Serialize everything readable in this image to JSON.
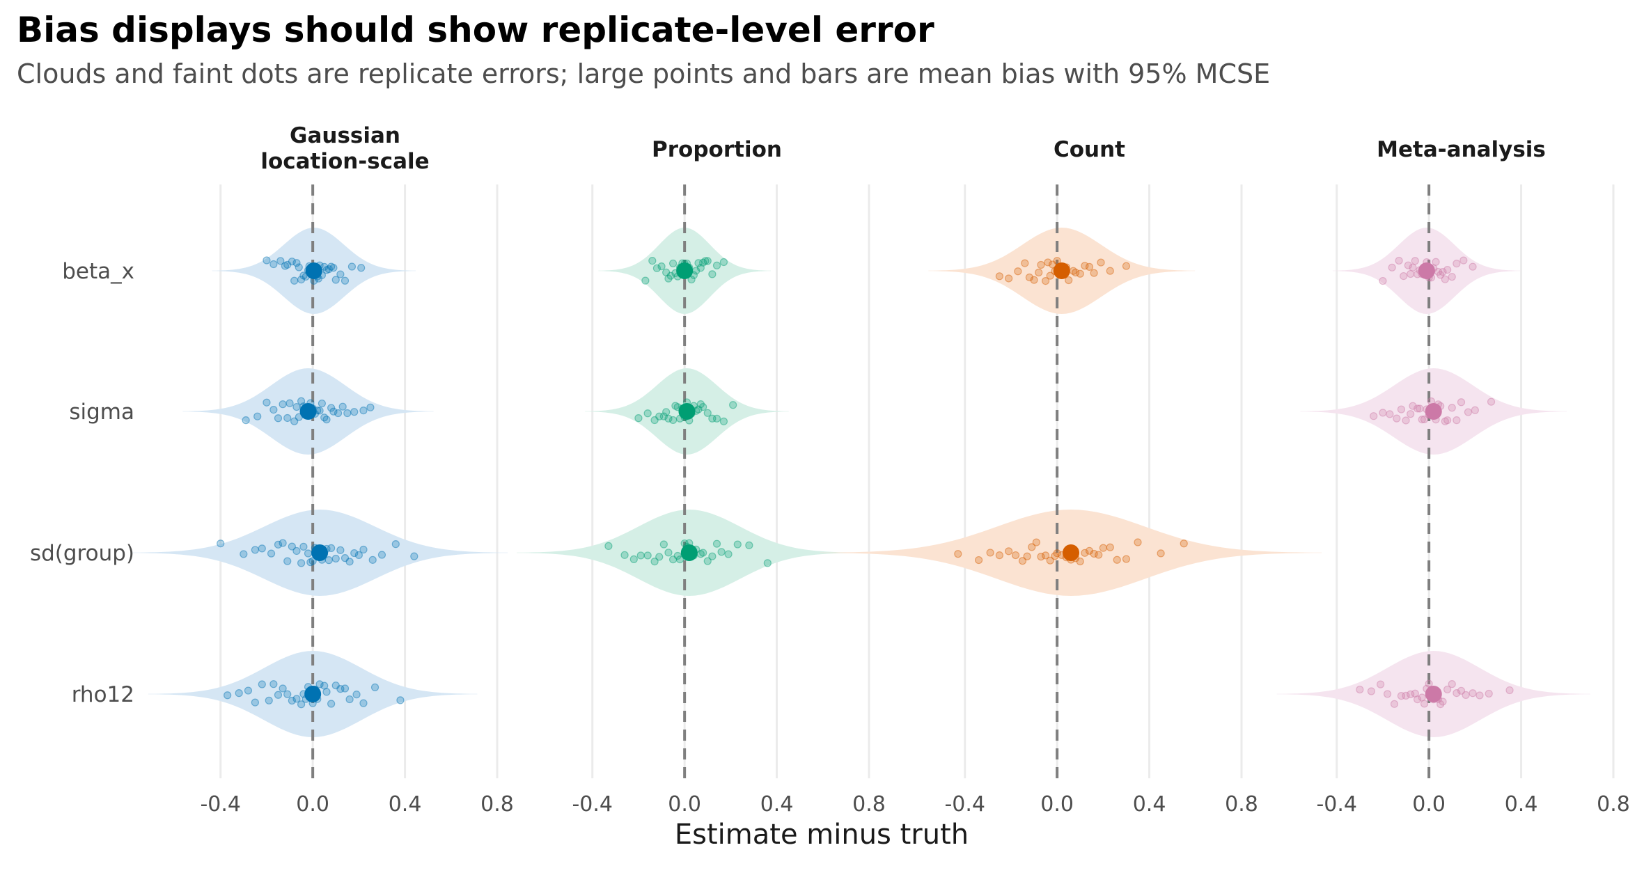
{
  "title": "Bias displays should show replicate-level error",
  "subtitle": "Clouds and faint dots are replicate errors; large points and bars are mean bias with 95% MCSE",
  "colors": {
    "gaussian": "#0072B2",
    "proportion": "#009E73",
    "count": "#D55E00",
    "meta": "#CC79A7",
    "gaussian_fill": "#d5e6f4",
    "proportion_fill": "#d5efe6",
    "count_fill": "#fbe3d2",
    "meta_fill": "#f5e4ef",
    "gridline": "#ebebeb",
    "reference_line": "#7f7f7f"
  },
  "chart_data": {
    "type": "scatter",
    "chart_style": "faceted violin with jittered replicate points and mean-bias points",
    "xlabel": "Estimate minus truth",
    "xlim": [
      -0.52,
      0.8
    ],
    "x_ticks": [
      -0.4,
      0.0,
      0.4,
      0.8
    ],
    "x_tick_labels": [
      "-0.4",
      "0.0",
      "0.4",
      "0.8"
    ],
    "reference_line": 0.0,
    "rows": [
      "beta_x",
      "sigma",
      "sd(group)",
      "rho12"
    ],
    "facets": [
      {
        "key": "gaussian",
        "title_lines": [
          "Gaussian",
          "location-scale"
        ],
        "color_key": "gaussian",
        "panels": [
          {
            "row": "beta_x",
            "mean": 0.005,
            "spread": 0.13,
            "replicates": [
              -0.2,
              -0.17,
              -0.14,
              -0.12,
              -0.11,
              -0.09,
              -0.08,
              -0.07,
              -0.06,
              -0.05,
              -0.04,
              -0.03,
              -0.02,
              -0.015,
              -0.01,
              0.0,
              0.005,
              0.01,
              0.02,
              0.025,
              0.03,
              0.04,
              0.05,
              0.06,
              0.07,
              0.08,
              0.09,
              0.1,
              0.12,
              0.14,
              0.17,
              0.21
            ]
          },
          {
            "row": "sigma",
            "mean": -0.02,
            "spread": 0.16,
            "replicates": [
              -0.29,
              -0.24,
              -0.2,
              -0.17,
              -0.15,
              -0.13,
              -0.11,
              -0.1,
              -0.08,
              -0.07,
              -0.06,
              -0.05,
              -0.04,
              -0.03,
              -0.02,
              -0.01,
              0.0,
              0.01,
              0.02,
              0.03,
              0.04,
              0.05,
              0.06,
              0.08,
              0.09,
              0.11,
              0.13,
              0.15,
              0.18,
              0.22,
              0.25
            ]
          },
          {
            "row": "sd(group)",
            "mean": 0.03,
            "spread": 0.24,
            "replicates": [
              -0.4,
              -0.3,
              -0.25,
              -0.22,
              -0.18,
              -0.15,
              -0.13,
              -0.11,
              -0.09,
              -0.07,
              -0.05,
              -0.04,
              -0.02,
              -0.01,
              0.0,
              0.01,
              0.03,
              0.04,
              0.06,
              0.07,
              0.08,
              0.1,
              0.12,
              0.14,
              0.16,
              0.18,
              0.2,
              0.22,
              0.26,
              0.3,
              0.36,
              0.44
            ]
          },
          {
            "row": "rho12",
            "mean": 0.0,
            "spread": 0.21,
            "replicates": [
              -0.37,
              -0.32,
              -0.28,
              -0.25,
              -0.22,
              -0.19,
              -0.17,
              -0.15,
              -0.13,
              -0.11,
              -0.09,
              -0.07,
              -0.05,
              -0.04,
              -0.03,
              -0.02,
              -0.01,
              0.0,
              0.01,
              0.02,
              0.03,
              0.05,
              0.06,
              0.08,
              0.1,
              0.12,
              0.14,
              0.16,
              0.19,
              0.22,
              0.27,
              0.38
            ]
          }
        ]
      },
      {
        "key": "proportion",
        "title_lines": [
          "Proportion"
        ],
        "color_key": "proportion",
        "panels": [
          {
            "row": "beta_x",
            "mean": 0.0,
            "spread": 0.11,
            "replicates": [
              -0.17,
              -0.14,
              -0.12,
              -0.1,
              -0.08,
              -0.07,
              -0.06,
              -0.05,
              -0.04,
              -0.03,
              -0.02,
              -0.015,
              -0.01,
              0.0,
              0.005,
              0.01,
              0.02,
              0.03,
              0.04,
              0.05,
              0.06,
              0.07,
              0.08,
              0.09,
              0.1,
              0.12,
              0.14,
              0.17
            ]
          },
          {
            "row": "sigma",
            "mean": 0.01,
            "spread": 0.13,
            "replicates": [
              -0.2,
              -0.16,
              -0.13,
              -0.11,
              -0.09,
              -0.08,
              -0.07,
              -0.05,
              -0.04,
              -0.03,
              -0.02,
              -0.01,
              0.0,
              0.01,
              0.02,
              0.03,
              0.04,
              0.05,
              0.06,
              0.07,
              0.08,
              0.1,
              0.12,
              0.14,
              0.17,
              0.21
            ]
          },
          {
            "row": "sd(group)",
            "mean": 0.02,
            "spread": 0.22,
            "replicates": [
              -0.33,
              -0.26,
              -0.22,
              -0.19,
              -0.16,
              -0.13,
              -0.11,
              -0.09,
              -0.07,
              -0.05,
              -0.03,
              -0.02,
              0.0,
              0.01,
              0.02,
              0.04,
              0.05,
              0.07,
              0.08,
              0.1,
              0.12,
              0.14,
              0.16,
              0.19,
              0.23,
              0.28,
              0.36
            ]
          }
        ]
      },
      {
        "key": "count",
        "title_lines": [
          "Count"
        ],
        "color_key": "count",
        "panels": [
          {
            "row": "beta_x",
            "mean": 0.02,
            "spread": 0.17,
            "replicates": [
              -0.25,
              -0.21,
              -0.17,
              -0.14,
              -0.12,
              -0.1,
              -0.08,
              -0.07,
              -0.05,
              -0.04,
              -0.03,
              -0.02,
              -0.01,
              0.0,
              0.01,
              0.02,
              0.03,
              0.04,
              0.05,
              0.07,
              0.08,
              0.1,
              0.12,
              0.14,
              0.16,
              0.19,
              0.23,
              0.3
            ]
          },
          {
            "row": "sd(group)",
            "mean": 0.06,
            "spread": 0.32,
            "replicates": [
              -0.43,
              -0.34,
              -0.29,
              -0.25,
              -0.21,
              -0.18,
              -0.15,
              -0.13,
              -0.11,
              -0.09,
              -0.07,
              -0.05,
              -0.03,
              -0.01,
              0.0,
              0.02,
              0.04,
              0.06,
              0.08,
              0.1,
              0.12,
              0.14,
              0.16,
              0.18,
              0.2,
              0.23,
              0.26,
              0.3,
              0.35,
              0.45,
              0.55
            ]
          }
        ]
      },
      {
        "key": "meta",
        "title_lines": [
          "Meta-analysis"
        ],
        "color_key": "meta",
        "panels": [
          {
            "row": "beta_x",
            "mean": -0.01,
            "spread": 0.12,
            "replicates": [
              -0.2,
              -0.16,
              -0.13,
              -0.11,
              -0.09,
              -0.08,
              -0.07,
              -0.06,
              -0.05,
              -0.04,
              -0.03,
              -0.02,
              -0.01,
              0.0,
              0.005,
              0.01,
              0.02,
              0.03,
              0.04,
              0.05,
              0.06,
              0.07,
              0.08,
              0.1,
              0.12,
              0.15,
              0.19
            ]
          },
          {
            "row": "sigma",
            "mean": 0.02,
            "spread": 0.17,
            "replicates": [
              -0.24,
              -0.2,
              -0.17,
              -0.14,
              -0.12,
              -0.1,
              -0.08,
              -0.07,
              -0.05,
              -0.04,
              -0.03,
              -0.02,
              -0.01,
              0.0,
              0.01,
              0.02,
              0.03,
              0.04,
              0.05,
              0.07,
              0.08,
              0.1,
              0.12,
              0.14,
              0.17,
              0.2,
              0.27
            ]
          },
          {
            "row": "rho12",
            "mean": 0.02,
            "spread": 0.2,
            "replicates": [
              -0.3,
              -0.25,
              -0.21,
              -0.18,
              -0.15,
              -0.12,
              -0.1,
              -0.08,
              -0.06,
              -0.05,
              -0.03,
              -0.02,
              -0.01,
              0.0,
              0.01,
              0.02,
              0.04,
              0.05,
              0.06,
              0.08,
              0.1,
              0.12,
              0.14,
              0.16,
              0.19,
              0.22,
              0.26,
              0.35
            ]
          }
        ]
      }
    ]
  }
}
